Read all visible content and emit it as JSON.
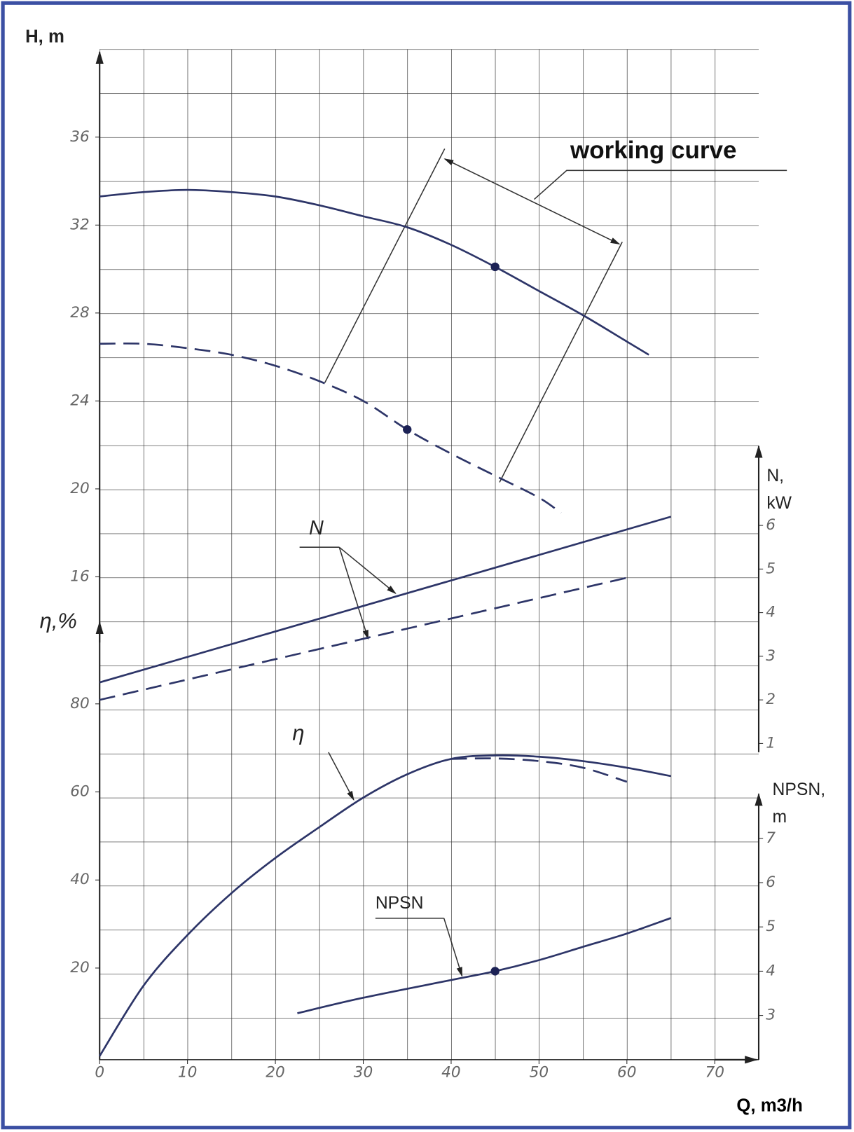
{
  "chart_data": {
    "type": "line",
    "xlabel": "Q, m3/h",
    "xlim": [
      0,
      75
    ],
    "xticks": [
      0,
      10,
      20,
      30,
      40,
      50,
      60,
      70
    ],
    "panels": [
      {
        "ylabel": [
          "H, m"
        ],
        "side": "left",
        "ylim": [
          16,
          40
        ],
        "yticks": [
          16,
          20,
          24,
          28,
          32,
          36
        ],
        "series": [
          {
            "dash": false,
            "x": [
              0,
              5,
              10,
              15,
              20,
              25,
              30,
              35,
              40,
              45,
              50,
              55,
              60,
              62.5
            ],
            "values": [
              33.3,
              33.5,
              33.6,
              33.5,
              33.3,
              32.9,
              32.4,
              31.9,
              31.1,
              30.1,
              29.0,
              27.9,
              26.7,
              26.1
            ],
            "markers": [
              {
                "x": 45,
                "y": 30.1
              }
            ]
          },
          {
            "dash": true,
            "x": [
              0,
              5,
              10,
              15,
              20,
              25,
              30,
              35,
              40,
              45,
              50,
              52.5
            ],
            "values": [
              26.6,
              26.6,
              26.4,
              26.1,
              25.6,
              24.9,
              24.0,
              22.7,
              21.6,
              20.6,
              19.6,
              18.9
            ],
            "markers": [
              {
                "x": 35,
                "y": 22.7
              }
            ]
          }
        ]
      },
      {
        "ylabel": [
          "N,",
          "kW"
        ],
        "side": "right",
        "ylim": [
          0.8,
          7.8
        ],
        "yticks": [
          1,
          2,
          3,
          4,
          5,
          6
        ],
        "series": [
          {
            "dash": false,
            "x": [
              0,
              65
            ],
            "values": [
              2.4,
              6.2
            ]
          },
          {
            "dash": true,
            "x": [
              0,
              60
            ],
            "values": [
              2.0,
              4.8
            ]
          }
        ]
      },
      {
        "ylabel": [
          "η,%"
        ],
        "side": "left",
        "ylim": [
          0,
          80
        ],
        "yticks": [
          20,
          40,
          60,
          80
        ],
        "series": [
          {
            "dash": false,
            "x": [
              0,
              5,
              10,
              15,
              20,
              25,
              30,
              35,
              40,
              45,
              50,
              55,
              60,
              65
            ],
            "values": [
              0,
              16,
              27.5,
              37,
              45,
              52,
              58.7,
              64,
              67.5,
              68.3,
              68,
              67,
              65.5,
              63.6
            ]
          },
          {
            "dash": true,
            "x": [
              40,
              45,
              50,
              55,
              60
            ],
            "values": [
              67.5,
              67.6,
              67,
              65.5,
              62.3
            ]
          }
        ]
      },
      {
        "ylabel": [
          "NPSN,",
          "m"
        ],
        "side": "right",
        "ylim": [
          2,
          8
        ],
        "yticks": [
          3,
          4,
          5,
          6,
          7
        ],
        "series": [
          {
            "dash": false,
            "x": [
              22.5,
              30,
              40,
              45,
              50,
              55,
              60,
              65
            ],
            "values": [
              3.05,
              3.4,
              3.8,
              4.0,
              4.25,
              4.55,
              4.85,
              5.2
            ],
            "markers": [
              {
                "x": 45,
                "y": 4.0
              }
            ]
          }
        ]
      }
    ],
    "annotations": [
      "working curve",
      "N",
      "η",
      "NPSN"
    ]
  }
}
